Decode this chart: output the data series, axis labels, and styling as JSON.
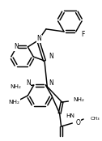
{
  "bg_color": "#ffffff",
  "line_color": "#000000",
  "line_width": 1.05,
  "font_size": 5.5,
  "figsize": [
    1.26,
    1.74
  ],
  "dpi": 100,
  "xlim": [
    0,
    126
  ],
  "ylim": [
    0,
    174
  ]
}
